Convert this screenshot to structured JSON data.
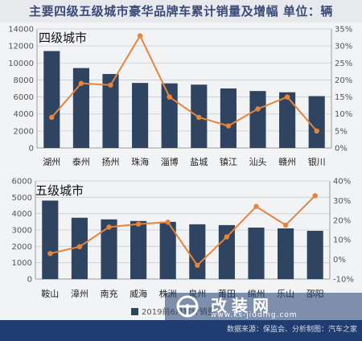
{
  "title": "主要四级五级城市豪华品牌车累计销量及增幅 单位：辆",
  "legend": {
    "bar_label": "2019前6月累计销量"
  },
  "source": "数据来源：保监会、分析制图：汽车之家",
  "watermark": {
    "title": "改装网",
    "url": "www.ks-jiuding.com"
  },
  "colors": {
    "bar": "#2e4461",
    "line": "#e8833a",
    "grid": "#c9ccd2",
    "footer": "#1f3d70"
  },
  "chart_data": [
    {
      "type": "bar+line",
      "title": "四级城市",
      "categories": [
        "湖州",
        "泰州",
        "扬州",
        "珠海",
        "淄博",
        "盐城",
        "镇江",
        "汕头",
        "赣州",
        "银川"
      ],
      "series": [
        {
          "name": "2019前6月累计销量",
          "type": "bar",
          "axis": "left",
          "values": [
            11400,
            9400,
            8700,
            7650,
            7600,
            7450,
            7000,
            6700,
            6550,
            6100
          ]
        },
        {
          "type": "line",
          "axis": "right",
          "values": [
            9,
            19,
            18.5,
            33,
            15,
            9,
            6.5,
            11.5,
            15,
            5
          ]
        }
      ],
      "ylim_left": [
        0,
        14000
      ],
      "yticks_left": [
        "0",
        "2000",
        "4000",
        "6000",
        "8000",
        "10000",
        "12000",
        "14000"
      ],
      "ylim_right": [
        0,
        35
      ],
      "yticks_right": [
        "0%",
        "5%",
        "10%",
        "15%",
        "20%",
        "25%",
        "30%",
        "35%"
      ],
      "grid": true
    },
    {
      "type": "bar+line",
      "title": "五级城市",
      "categories": [
        "鞍山",
        "漳州",
        "南充",
        "威海",
        "株洲",
        "泉州",
        "莆田",
        "绵州",
        "乐山",
        "邵阳"
      ],
      "series": [
        {
          "name": "2019前6月累计销量",
          "type": "bar",
          "axis": "left",
          "values": [
            4800,
            3750,
            3650,
            3550,
            3500,
            3350,
            3300,
            3150,
            3100,
            2950
          ]
        },
        {
          "type": "line",
          "axis": "right",
          "values": [
            3,
            6.5,
            16.5,
            18,
            19,
            -3,
            11.5,
            27,
            17.5,
            32.5
          ]
        }
      ],
      "ylim_left": [
        0,
        6000
      ],
      "yticks_left": [
        "0",
        "1000",
        "2000",
        "3000",
        "4000",
        "5000",
        "6000"
      ],
      "ylim_right": [
        -10,
        40
      ],
      "yticks_right": [
        "-10%",
        "0%",
        "10%",
        "20%",
        "30%",
        "40%"
      ],
      "grid": true
    }
  ]
}
